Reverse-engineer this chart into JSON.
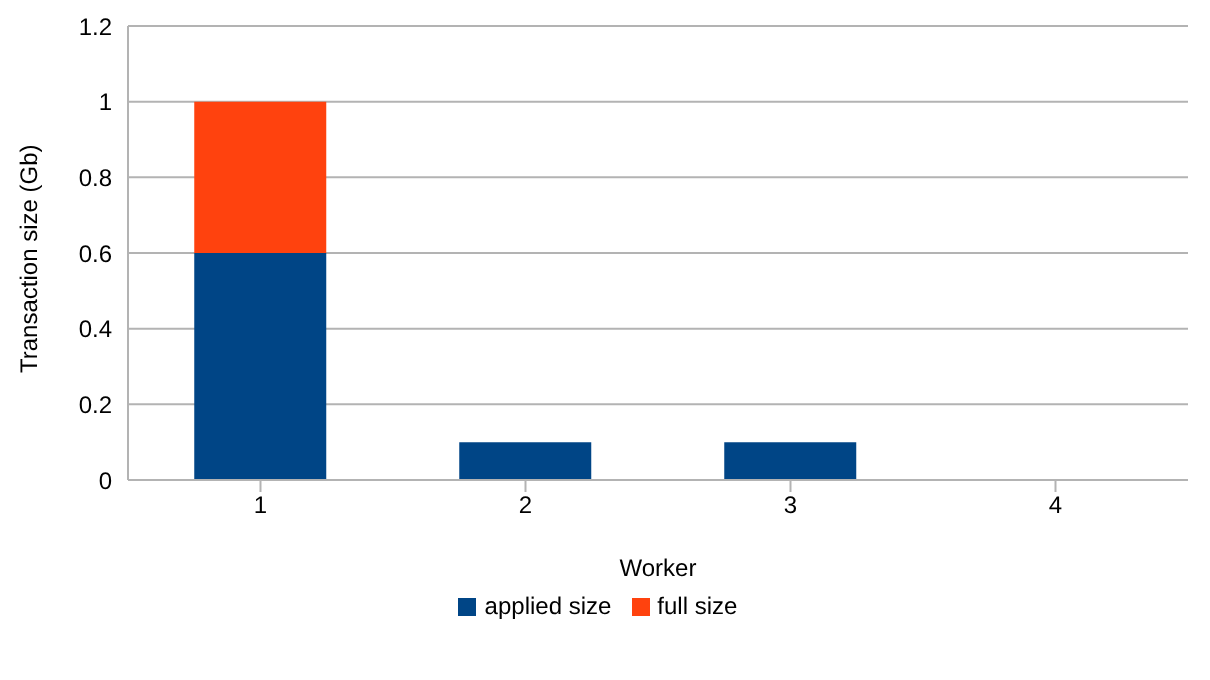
{
  "chart_data": {
    "type": "bar",
    "stacked": true,
    "xlabel": "Worker",
    "ylabel": "Transaction size (Gb)",
    "categories": [
      "1",
      "2",
      "3",
      "4"
    ],
    "series": [
      {
        "name": "applied size",
        "color": "#004586",
        "values": [
          0.6,
          0.1,
          0.1,
          0
        ]
      },
      {
        "name": "full size",
        "color": "#ff420e",
        "values": [
          0.4,
          0,
          0,
          0
        ]
      }
    ],
    "ylim": [
      0,
      1.2
    ],
    "yticks": [
      0,
      0.2,
      0.4,
      0.6,
      0.8,
      1,
      1.2
    ],
    "grid": "y",
    "legend": "bottom"
  }
}
